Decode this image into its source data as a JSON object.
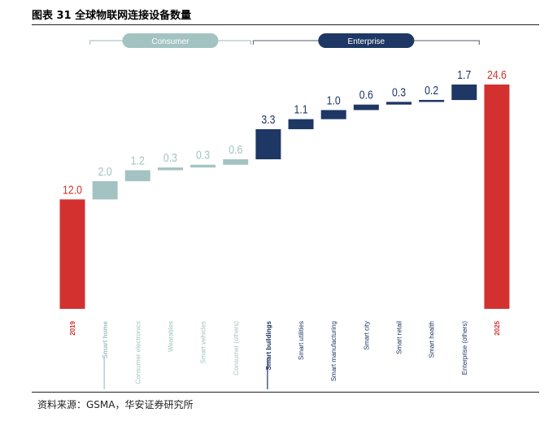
{
  "figure": {
    "title": "图表 31 全球物联网连接设备数量",
    "source": "资料来源：GSMA，华安证券研究所"
  },
  "chart_data": {
    "type": "waterfall",
    "title": "",
    "xlabel": "",
    "ylabel": "",
    "groups": [
      {
        "name": "Consumer",
        "color": "#a3c3c2",
        "start_index": 1,
        "end_index": 5
      },
      {
        "name": "Enterprise",
        "color": "#1e3764",
        "start_index": 6,
        "end_index": 12
      }
    ],
    "colors": {
      "total": "#d2312f",
      "consumer": "#a3c3c2",
      "enterprise": "#1e3764"
    },
    "categories": [
      "2019",
      "Smart home",
      "Consumer electronics",
      "Wearables",
      "Smart vehicles",
      "Consumer (others)",
      "Smart buildings",
      "Smart utilities",
      "Smart manufacturing",
      "Smart city",
      "Smart retail",
      "Smart health",
      "Enterprise (others)",
      "2025"
    ],
    "kinds": [
      "total",
      "consumer",
      "consumer",
      "consumer",
      "consumer",
      "consumer",
      "enterprise",
      "enterprise",
      "enterprise",
      "enterprise",
      "enterprise",
      "enterprise",
      "enterprise",
      "total"
    ],
    "values": [
      12.0,
      2.0,
      1.2,
      0.3,
      0.3,
      0.6,
      3.3,
      1.1,
      1.0,
      0.6,
      0.3,
      0.2,
      1.7,
      24.6
    ],
    "value_labels": [
      "12.0",
      "2.0",
      "1.2",
      "0.3",
      "0.3",
      "0.6",
      "3.3",
      "1.1",
      "1.0",
      "0.6",
      "0.3",
      "0.2",
      "1.7",
      "24.6"
    ],
    "highlighted_categories": [
      "Smart home",
      "Smart buildings"
    ],
    "ylim": [
      0,
      24.6
    ]
  }
}
